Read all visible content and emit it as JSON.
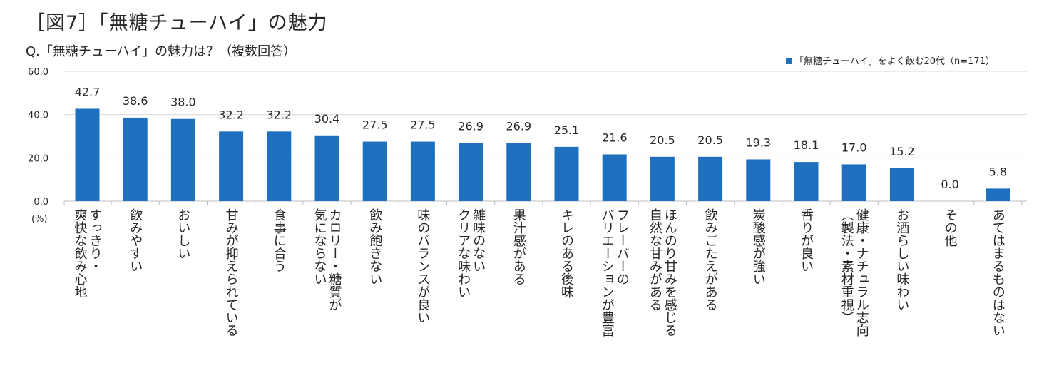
{
  "figure": {
    "title": "［図7］「無糖チューハイ」の魅力",
    "question": "Q.「無糖チューハイ」の魅力は？（複数回答）"
  },
  "colors": {
    "bar": "#1F6FBF",
    "grid": "#D9D9D9",
    "axis": "#BFBFBF",
    "text": "#262626"
  },
  "chart_data": {
    "type": "bar",
    "unit_label": "(%)",
    "ylim": [
      0,
      60
    ],
    "yticks": [
      "0.0",
      "20.0",
      "40.0",
      "60.0"
    ],
    "grid": true,
    "legend_position": "top-right",
    "series": [
      {
        "name": "「無糖チューハイ」をよく飲む20代（n=171）",
        "values": [
          42.7,
          38.6,
          38.0,
          32.2,
          32.2,
          30.4,
          27.5,
          27.5,
          26.9,
          26.9,
          25.1,
          21.6,
          20.5,
          20.5,
          19.3,
          18.1,
          17.0,
          15.2,
          0.0,
          5.8
        ]
      }
    ],
    "value_labels": [
      "42.7",
      "38.6",
      "38.0",
      "32.2",
      "32.2",
      "30.4",
      "27.5",
      "27.5",
      "26.9",
      "26.9",
      "25.1",
      "21.6",
      "20.5",
      "20.5",
      "19.3",
      "18.1",
      "17.0",
      "15.2",
      "0.0",
      "5.8"
    ],
    "categories": [
      [
        "すっきり・",
        "爽快な飲み心地"
      ],
      [
        "飲みやすい"
      ],
      [
        "おいしい"
      ],
      [
        "甘みが抑えられている"
      ],
      [
        "食事に合う"
      ],
      [
        "カロリー・糖質が",
        "気にならない"
      ],
      [
        "飲み飽きない"
      ],
      [
        "味のバランスが良い"
      ],
      [
        "雑味のない",
        "クリアな味わい"
      ],
      [
        "果汁感がある"
      ],
      [
        "キレのある後味"
      ],
      [
        "フレーバーの",
        "バリエーションが豊富"
      ],
      [
        "ほんのり甘みを感じる",
        "自然な甘みがある"
      ],
      [
        "飲みごたえがある"
      ],
      [
        "炭酸感が強い"
      ],
      [
        "香りが良い"
      ],
      [
        "健康・ナチュラル志向",
        "（製法・素材重視）"
      ],
      [
        "お酒らしい味わい"
      ],
      [
        "その他"
      ],
      [
        "あてはまるものはない"
      ]
    ]
  }
}
